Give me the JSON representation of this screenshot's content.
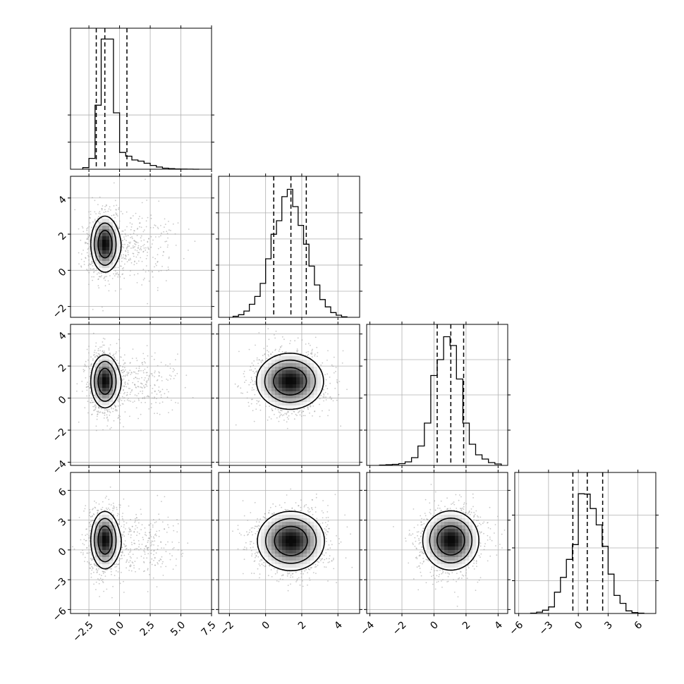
{
  "colors": {
    "grid": "#b0b0b0",
    "line": "#000000",
    "background": "#ffffff"
  },
  "chart_data": {
    "type": "corner",
    "variables": [
      {
        "range": [
          -4.0,
          7.5
        ],
        "ticks": [
          -2.5,
          0.0,
          2.5,
          5.0,
          7.5
        ],
        "tick_labels": [
          "−2.5",
          "0.0",
          "2.5",
          "5.0",
          "7.5"
        ]
      },
      {
        "range": [
          -2.6,
          5.2
        ],
        "ticks": [
          -2,
          0,
          2,
          4
        ],
        "tick_labels": [
          "−2",
          "0",
          "2",
          "4"
        ]
      },
      {
        "range": [
          -4.2,
          4.6
        ],
        "ticks": [
          -4,
          -2,
          0,
          2,
          4
        ],
        "tick_labels": [
          "−4",
          "−2",
          "0",
          "2",
          "4"
        ]
      },
      {
        "range": [
          -6.4,
          7.8
        ],
        "ticks": [
          -6,
          -3,
          0,
          3,
          6
        ],
        "tick_labels": [
          "−6",
          "−3",
          "0",
          "3",
          "6"
        ]
      }
    ],
    "histograms": [
      {
        "variable": 0,
        "bin_edges": [
          -3.0,
          -2.5,
          -2.0,
          -1.5,
          -1.0,
          -0.5,
          0.0,
          0.5,
          1.0,
          1.5,
          2.0,
          2.5,
          3.0,
          3.5,
          4.0,
          4.5,
          5.0,
          5.5,
          6.0,
          6.5
        ],
        "counts": [
          3,
          20,
          118,
          240,
          240,
          104,
          31,
          24,
          17,
          15,
          11,
          7,
          4,
          2,
          1,
          0.5,
          0.3,
          0.1,
          0.05
        ],
        "ymax": 260,
        "ygrid": [
          50,
          100
        ],
        "quantiles": [
          -1.9,
          -1.2,
          0.6
        ]
      },
      {
        "variable": 1,
        "bin_edges": [
          -1.8,
          -1.5,
          -1.2,
          -0.9,
          -0.6,
          -0.3,
          0.0,
          0.3,
          0.6,
          0.9,
          1.2,
          1.5,
          1.8,
          2.1,
          2.4,
          2.7,
          3.0,
          3.3,
          3.6,
          3.9,
          4.2,
          4.5
        ],
        "counts": [
          2,
          5,
          12,
          25,
          40,
          65,
          112,
          159,
          185,
          231,
          245,
          212,
          176,
          140,
          98,
          62,
          34,
          20,
          9,
          4,
          1
        ],
        "ymax": 270,
        "ygrid": [
          50,
          100,
          150,
          200
        ],
        "quantiles": [
          0.45,
          1.4,
          2.25
        ]
      },
      {
        "variable": 2,
        "bin_edges": [
          -3.4,
          -3.0,
          -2.6,
          -2.2,
          -1.8,
          -1.4,
          -1.0,
          -0.6,
          -0.2,
          0.2,
          0.6,
          1.0,
          1.4,
          1.8,
          2.2,
          2.6,
          3.0,
          3.4,
          3.8,
          4.2
        ],
        "counts": [
          1,
          2,
          3,
          5,
          10,
          22,
          55,
          120,
          255,
          300,
          365,
          340,
          245,
          120,
          60,
          30,
          18,
          8,
          4
        ],
        "ymax": 400,
        "ygrid": [
          100,
          200,
          300
        ],
        "quantiles": [
          0.2,
          1.05,
          1.85
        ]
      },
      {
        "variable": 3,
        "bin_edges": [
          -4.8,
          -4.2,
          -3.6,
          -3.0,
          -2.4,
          -1.8,
          -1.2,
          -0.6,
          0.0,
          0.6,
          1.2,
          1.8,
          2.4,
          3.0,
          3.6,
          4.2,
          4.8,
          5.4,
          6.0,
          6.6
        ],
        "counts": [
          1,
          4,
          10,
          20,
          65,
          110,
          165,
          210,
          365,
          364,
          320,
          270,
          205,
          120,
          55,
          31,
          8,
          3,
          1
        ],
        "ymax": 430,
        "ygrid": [
          100,
          200,
          300
        ],
        "quantiles": [
          -0.55,
          0.9,
          2.45
        ]
      }
    ],
    "densities": [
      {
        "x": 0,
        "y": 1,
        "components": [
          {
            "weight": 0.78,
            "mean": [
              -1.2,
              1.45
            ],
            "sd": [
              0.55,
              0.75
            ]
          },
          {
            "weight": 0.22,
            "mean": [
              1.2,
              1.3
            ],
            "sd": [
              1.6,
              0.85
            ]
          }
        ]
      },
      {
        "x": 0,
        "y": 2,
        "components": [
          {
            "weight": 0.78,
            "mean": [
              -1.2,
              1.05
            ],
            "sd": [
              0.55,
              0.8
            ]
          },
          {
            "weight": 0.22,
            "mean": [
              1.2,
              0.9
            ],
            "sd": [
              1.6,
              0.9
            ]
          }
        ]
      },
      {
        "x": 0,
        "y": 3,
        "components": [
          {
            "weight": 0.78,
            "mean": [
              -1.2,
              1.0
            ],
            "sd": [
              0.55,
              1.4
            ]
          },
          {
            "weight": 0.22,
            "mean": [
              1.2,
              0.6
            ],
            "sd": [
              1.6,
              1.5
            ]
          }
        ]
      },
      {
        "x": 1,
        "y": 2,
        "components": [
          {
            "weight": 1.0,
            "mean": [
              1.35,
              1.05
            ],
            "sd": [
              0.9,
              0.85
            ]
          }
        ]
      },
      {
        "x": 1,
        "y": 3,
        "components": [
          {
            "weight": 1.0,
            "mean": [
              1.4,
              0.9
            ],
            "sd": [
              0.9,
              1.45
            ]
          }
        ]
      },
      {
        "x": 2,
        "y": 3,
        "components": [
          {
            "weight": 1.0,
            "mean": [
              1.05,
              0.95
            ],
            "sd": [
              0.85,
              1.45
            ]
          }
        ]
      }
    ]
  }
}
